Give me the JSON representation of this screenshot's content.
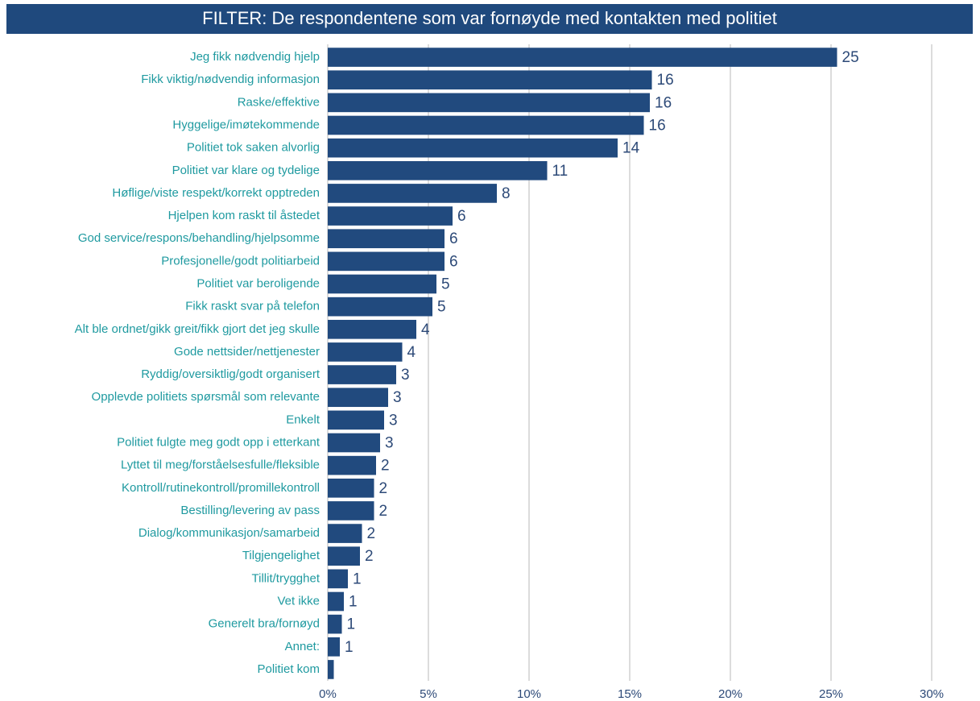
{
  "chart_data": {
    "type": "barh",
    "title": "FILTER: De respondentene som var fornøyde med kontakten med politiet",
    "categories": [
      "Jeg fikk nødvendig hjelp",
      "Fikk viktig/nødvendig informasjon",
      "Raske/effektive",
      "Hyggelige/imøtekommende",
      "Politiet tok saken alvorlig",
      "Politiet var klare og tydelige",
      "Høflige/viste respekt/korrekt opptreden",
      "Hjelpen kom raskt til åstedet",
      "God service/respons/behandling/hjelpsomme",
      "Profesjonelle/godt politiarbeid",
      "Politiet var beroligende",
      "Fikk raskt svar på telefon",
      "Alt ble ordnet/gikk greit/fikk gjort det jeg skulle",
      "Gode nettsider/nettjenester",
      "Ryddig/oversiktlig/godt organisert",
      "Opplevde politiets spørsmål som relevante",
      "Enkelt",
      "Politiet fulgte meg godt opp i etterkant",
      "Lyttet til meg/forståelsesfulle/fleksible",
      "Kontroll/rutinekontroll/promillekontroll",
      "Bestilling/levering av pass",
      "Dialog/kommunikasjon/samarbeid",
      "Tilgjengelighet",
      "Tillit/trygghet",
      "Vet ikke",
      "Generelt bra/fornøyd",
      "Annet:",
      "Politiet kom"
    ],
    "values": [
      25.3,
      16.1,
      16.0,
      15.7,
      14.4,
      10.9,
      8.4,
      6.2,
      5.8,
      5.8,
      5.4,
      5.2,
      4.4,
      3.7,
      3.4,
      3.0,
      2.8,
      2.6,
      2.4,
      2.3,
      2.3,
      1.7,
      1.6,
      1.0,
      0.8,
      0.7,
      0.6,
      0.3
    ],
    "value_labels": [
      "25",
      "16",
      "16",
      "16",
      "14",
      "11",
      "8",
      "6",
      "6",
      "6",
      "5",
      "5",
      "4",
      "4",
      "3",
      "3",
      "3",
      "3",
      "2",
      "2",
      "2",
      "2",
      "2",
      "1",
      "1",
      "1",
      "1",
      null
    ],
    "color": "#214a7e",
    "xlim": [
      0,
      30
    ],
    "xticks": [
      {
        "value": 0,
        "label": "0%"
      },
      {
        "value": 5,
        "label": "5%"
      },
      {
        "value": 10,
        "label": "10%"
      },
      {
        "value": 15,
        "label": "15%"
      },
      {
        "value": 20,
        "label": "20%"
      },
      {
        "value": 25,
        "label": "25%"
      },
      {
        "value": 30,
        "label": "30%"
      }
    ],
    "grid": true
  }
}
